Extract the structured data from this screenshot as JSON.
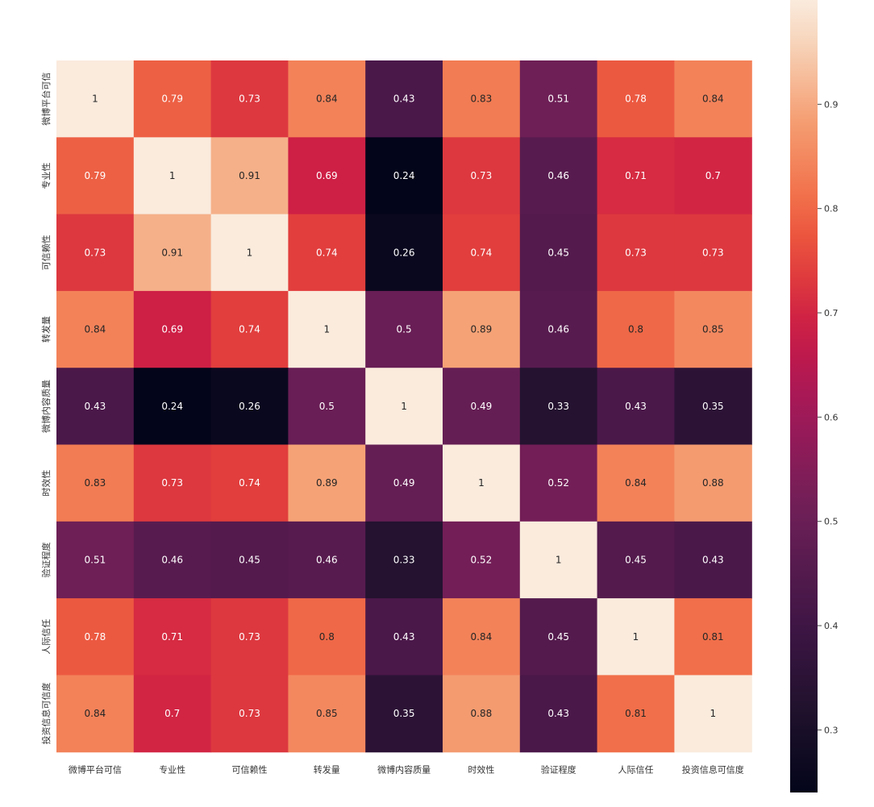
{
  "chart_data": {
    "type": "heatmap",
    "title": "",
    "xlabel": "",
    "ylabel": "",
    "row_labels": [
      "微博平台可信",
      "专业性",
      "可信赖性",
      "转发量",
      "微博内容质量",
      "时效性",
      "验证程度",
      "人际信任",
      "投资信息可信度"
    ],
    "col_labels": [
      "微博平台可信",
      "专业性",
      "可信赖性",
      "转发量",
      "微博内容质量",
      "时效性",
      "验证程度",
      "人际信任",
      "投资信息可信度"
    ],
    "values": [
      [
        1,
        0.79,
        0.73,
        0.84,
        0.43,
        0.83,
        0.51,
        0.78,
        0.84
      ],
      [
        0.79,
        1,
        0.91,
        0.69,
        0.24,
        0.73,
        0.46,
        0.71,
        0.7
      ],
      [
        0.73,
        0.91,
        1,
        0.74,
        0.26,
        0.74,
        0.45,
        0.73,
        0.73
      ],
      [
        0.84,
        0.69,
        0.74,
        1,
        0.5,
        0.89,
        0.46,
        0.8,
        0.85
      ],
      [
        0.43,
        0.24,
        0.26,
        0.5,
        1,
        0.49,
        0.33,
        0.43,
        0.35
      ],
      [
        0.83,
        0.73,
        0.74,
        0.89,
        0.49,
        1,
        0.52,
        0.84,
        0.88
      ],
      [
        0.51,
        0.46,
        0.45,
        0.46,
        0.33,
        0.52,
        1,
        0.45,
        0.43
      ],
      [
        0.78,
        0.71,
        0.73,
        0.8,
        0.43,
        0.84,
        0.45,
        1,
        0.81
      ],
      [
        0.84,
        0.7,
        0.73,
        0.85,
        0.35,
        0.88,
        0.43,
        0.81,
        1
      ]
    ],
    "annotations": true,
    "colormap": "rocket",
    "colorbar": {
      "range": [
        0.24,
        1
      ],
      "ticks": [
        "0.3",
        "0.4",
        "0.5",
        "0.6",
        "0.7",
        "0.8",
        "0.9"
      ],
      "position": "right"
    },
    "grid": false,
    "legend": "none"
  }
}
